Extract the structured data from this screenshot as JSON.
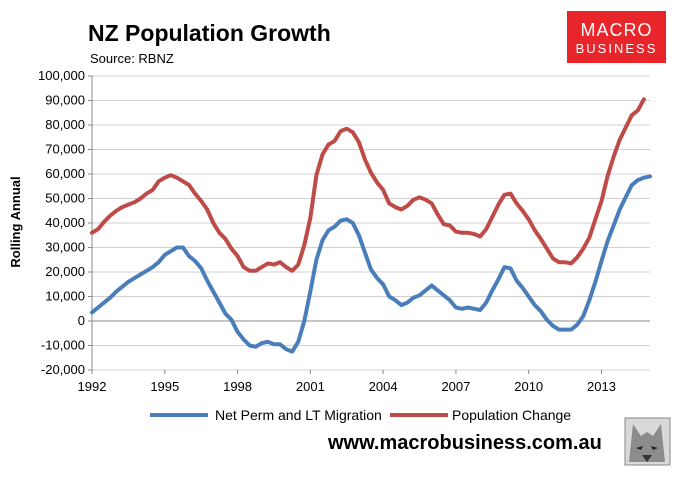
{
  "header": {
    "title": "NZ Population Growth",
    "source": "Source: RBNZ"
  },
  "logo": {
    "line1": "MACRO",
    "line2": "BUSINESS",
    "color": "#e8252b"
  },
  "footer": {
    "website": "www.macrobusiness.com.au",
    "mascot_icon": "wolf-head-icon"
  },
  "chart_data": {
    "type": "line",
    "title": "NZ Population Growth",
    "xlabel": "",
    "ylabel": "Rolling Annual",
    "xlim": [
      1992,
      2015
    ],
    "ylim": [
      -20000,
      100000
    ],
    "x_ticks": [
      "1992",
      "1995",
      "1998",
      "2001",
      "2004",
      "2007",
      "2010",
      "2013"
    ],
    "y_ticks": [
      "100,000",
      "90,000",
      "80,000",
      "70,000",
      "60,000",
      "50,000",
      "40,000",
      "30,000",
      "20,000",
      "10,000",
      "0",
      "-10,000",
      "-20,000"
    ],
    "legend_position": "bottom",
    "grid": "horizontal",
    "series": [
      {
        "name": "Net Perm and LT Migration",
        "color": "#4a7ebb",
        "points": [
          [
            1992.0,
            3500
          ],
          [
            1992.25,
            5500
          ],
          [
            1992.5,
            7500
          ],
          [
            1992.75,
            9500
          ],
          [
            1993.0,
            12000
          ],
          [
            1993.25,
            14000
          ],
          [
            1993.5,
            16000
          ],
          [
            1993.75,
            17500
          ],
          [
            1994.0,
            19000
          ],
          [
            1994.25,
            20500
          ],
          [
            1994.5,
            22000
          ],
          [
            1994.75,
            24000
          ],
          [
            1995.0,
            27000
          ],
          [
            1995.25,
            28500
          ],
          [
            1995.5,
            30000
          ],
          [
            1995.75,
            30000
          ],
          [
            1996.0,
            26500
          ],
          [
            1996.25,
            24500
          ],
          [
            1996.5,
            21500
          ],
          [
            1996.75,
            16500
          ],
          [
            1997.0,
            12000
          ],
          [
            1997.25,
            7500
          ],
          [
            1997.5,
            3000
          ],
          [
            1997.75,
            500
          ],
          [
            1998.0,
            -4500
          ],
          [
            1998.25,
            -7500
          ],
          [
            1998.5,
            -10000
          ],
          [
            1998.75,
            -10500
          ],
          [
            1999.0,
            -9000
          ],
          [
            1999.25,
            -8500
          ],
          [
            1999.5,
            -9500
          ],
          [
            1999.75,
            -9500
          ],
          [
            2000.0,
            -11500
          ],
          [
            2000.25,
            -12500
          ],
          [
            2000.5,
            -8500
          ],
          [
            2000.75,
            0
          ],
          [
            2001.0,
            12000
          ],
          [
            2001.25,
            25000
          ],
          [
            2001.5,
            33000
          ],
          [
            2001.75,
            37000
          ],
          [
            2002.0,
            38500
          ],
          [
            2002.25,
            41000
          ],
          [
            2002.5,
            41500
          ],
          [
            2002.75,
            40000
          ],
          [
            2003.0,
            35000
          ],
          [
            2003.25,
            28000
          ],
          [
            2003.5,
            21000
          ],
          [
            2003.75,
            17500
          ],
          [
            2004.0,
            15000
          ],
          [
            2004.25,
            10000
          ],
          [
            2004.5,
            8500
          ],
          [
            2004.75,
            6500
          ],
          [
            2005.0,
            7500
          ],
          [
            2005.25,
            9500
          ],
          [
            2005.5,
            10500
          ],
          [
            2005.75,
            12500
          ],
          [
            2006.0,
            14500
          ],
          [
            2006.25,
            12500
          ],
          [
            2006.5,
            10500
          ],
          [
            2006.75,
            8500
          ],
          [
            2007.0,
            5500
          ],
          [
            2007.25,
            5000
          ],
          [
            2007.5,
            5500
          ],
          [
            2007.75,
            5000
          ],
          [
            2008.0,
            4500
          ],
          [
            2008.25,
            7500
          ],
          [
            2008.5,
            12500
          ],
          [
            2008.75,
            17000
          ],
          [
            2009.0,
            22000
          ],
          [
            2009.25,
            21500
          ],
          [
            2009.5,
            16500
          ],
          [
            2009.75,
            13500
          ],
          [
            2010.0,
            10000
          ],
          [
            2010.25,
            6500
          ],
          [
            2010.5,
            4000
          ],
          [
            2010.75,
            500
          ],
          [
            2011.0,
            -2000
          ],
          [
            2011.25,
            -3500
          ],
          [
            2011.5,
            -3500
          ],
          [
            2011.75,
            -3500
          ],
          [
            2012.0,
            -1500
          ],
          [
            2012.25,
            2000
          ],
          [
            2012.5,
            8500
          ],
          [
            2012.75,
            16000
          ],
          [
            2013.0,
            24500
          ],
          [
            2013.25,
            32500
          ],
          [
            2013.5,
            39000
          ],
          [
            2013.75,
            45500
          ],
          [
            2014.0,
            50500
          ],
          [
            2014.25,
            55500
          ],
          [
            2014.5,
            57500
          ],
          [
            2014.75,
            58500
          ],
          [
            2015.0,
            59000
          ]
        ]
      },
      {
        "name": "Population Change",
        "color": "#be4b48",
        "points": [
          [
            1992.0,
            36000
          ],
          [
            1992.25,
            37500
          ],
          [
            1992.5,
            40500
          ],
          [
            1992.75,
            43000
          ],
          [
            1993.0,
            45000
          ],
          [
            1993.25,
            46500
          ],
          [
            1993.5,
            47500
          ],
          [
            1993.75,
            48500
          ],
          [
            1994.0,
            50000
          ],
          [
            1994.25,
            52000
          ],
          [
            1994.5,
            53500
          ],
          [
            1994.75,
            57000
          ],
          [
            1995.0,
            58500
          ],
          [
            1995.25,
            59500
          ],
          [
            1995.5,
            58500
          ],
          [
            1995.75,
            57000
          ],
          [
            1996.0,
            55500
          ],
          [
            1996.25,
            52000
          ],
          [
            1996.5,
            49000
          ],
          [
            1996.75,
            45500
          ],
          [
            1997.0,
            40000
          ],
          [
            1997.25,
            36000
          ],
          [
            1997.5,
            33500
          ],
          [
            1997.75,
            29500
          ],
          [
            1998.0,
            26500
          ],
          [
            1998.25,
            22000
          ],
          [
            1998.5,
            20500
          ],
          [
            1998.75,
            20500
          ],
          [
            1999.0,
            22000
          ],
          [
            1999.25,
            23500
          ],
          [
            1999.5,
            23000
          ],
          [
            1999.75,
            24000
          ],
          [
            2000.0,
            22000
          ],
          [
            2000.25,
            20500
          ],
          [
            2000.5,
            23000
          ],
          [
            2000.75,
            31000
          ],
          [
            2001.0,
            42000
          ],
          [
            2001.25,
            59500
          ],
          [
            2001.5,
            68000
          ],
          [
            2001.75,
            72000
          ],
          [
            2002.0,
            73500
          ],
          [
            2002.25,
            77500
          ],
          [
            2002.5,
            78500
          ],
          [
            2002.75,
            77000
          ],
          [
            2003.0,
            73000
          ],
          [
            2003.25,
            66000
          ],
          [
            2003.5,
            60500
          ],
          [
            2003.75,
            56500
          ],
          [
            2004.0,
            53500
          ],
          [
            2004.25,
            48000
          ],
          [
            2004.5,
            46500
          ],
          [
            2004.75,
            45500
          ],
          [
            2005.0,
            47000
          ],
          [
            2005.25,
            49500
          ],
          [
            2005.5,
            50500
          ],
          [
            2005.75,
            49500
          ],
          [
            2006.0,
            48000
          ],
          [
            2006.25,
            43500
          ],
          [
            2006.5,
            39500
          ],
          [
            2006.75,
            39000
          ],
          [
            2007.0,
            36500
          ],
          [
            2007.25,
            36000
          ],
          [
            2007.5,
            36000
          ],
          [
            2007.75,
            35500
          ],
          [
            2008.0,
            34500
          ],
          [
            2008.25,
            37500
          ],
          [
            2008.5,
            42500
          ],
          [
            2008.75,
            47500
          ],
          [
            2009.0,
            51500
          ],
          [
            2009.25,
            52000
          ],
          [
            2009.5,
            48000
          ],
          [
            2009.75,
            45000
          ],
          [
            2010.0,
            41500
          ],
          [
            2010.25,
            37000
          ],
          [
            2010.5,
            33500
          ],
          [
            2010.75,
            29500
          ],
          [
            2011.0,
            25500
          ],
          [
            2011.25,
            24000
          ],
          [
            2011.5,
            24000
          ],
          [
            2011.75,
            23500
          ],
          [
            2012.0,
            26000
          ],
          [
            2012.25,
            29500
          ],
          [
            2012.5,
            34000
          ],
          [
            2012.75,
            41500
          ],
          [
            2013.0,
            49000
          ],
          [
            2013.25,
            59000
          ],
          [
            2013.5,
            67000
          ],
          [
            2013.75,
            74000
          ],
          [
            2014.0,
            79000
          ],
          [
            2014.25,
            84000
          ],
          [
            2014.5,
            86000
          ],
          [
            2014.75,
            90500
          ]
        ]
      }
    ]
  }
}
